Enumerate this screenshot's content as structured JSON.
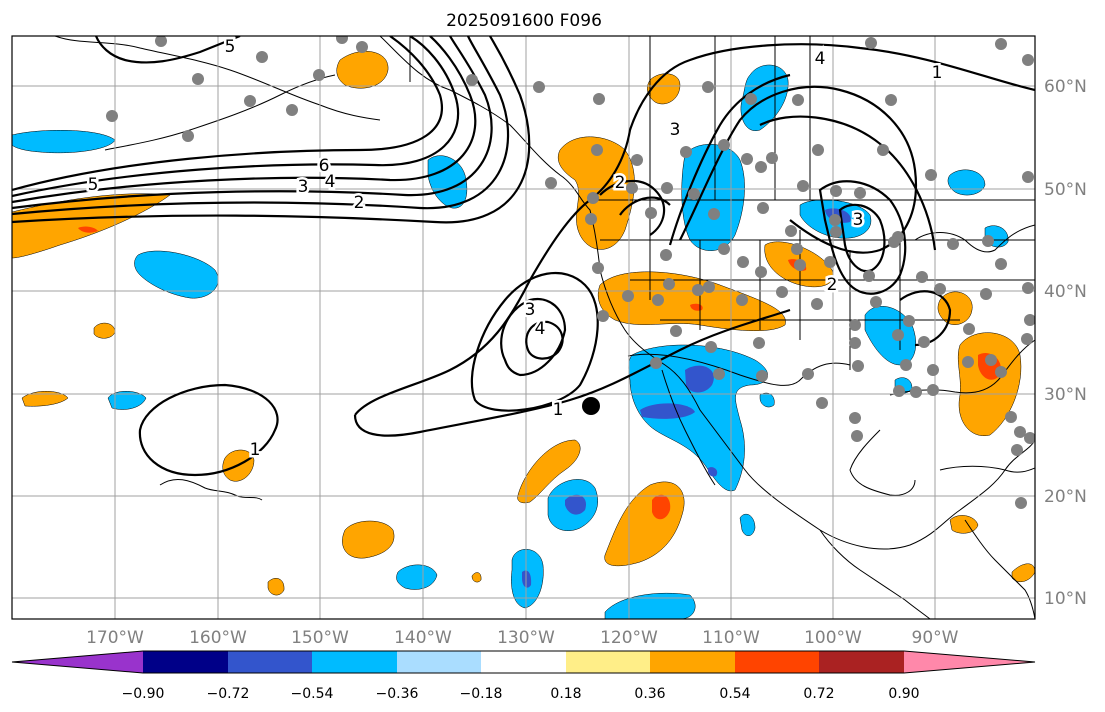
{
  "title": "2025091600 F096",
  "lon_labels": [
    "170°W",
    "160°W",
    "150°W",
    "140°W",
    "130°W",
    "120°W",
    "110°W",
    "100°W",
    "90°W"
  ],
  "lat_labels": [
    "60°N",
    "50°N",
    "40°N",
    "30°N",
    "20°N",
    "10°N"
  ],
  "colorbar": {
    "colors": [
      "#9933cc",
      "#000088",
      "#3355cc",
      "#00bbff",
      "#aaddff",
      "#ffffff",
      "#ffee88",
      "#ffa500",
      "#ff4400",
      "#aa2222",
      "#ff88aa"
    ],
    "tick_labels": [
      "−0.90",
      "−0.72",
      "−0.54",
      "−0.36",
      "−0.18",
      "0.18",
      "0.36",
      "0.54",
      "0.72",
      "0.90"
    ]
  },
  "contour_labels": [
    "6",
    "5",
    "4",
    "3",
    "2",
    "1",
    "2",
    "3",
    "4",
    "3",
    "4",
    "3",
    "2",
    "1",
    "1",
    "5"
  ],
  "colors": {
    "orange": "#ffa500",
    "red": "#ff4400",
    "cyan": "#00bbff",
    "blue": "#3355cc",
    "grid": "#a0a0a0",
    "dots": "#808080"
  }
}
